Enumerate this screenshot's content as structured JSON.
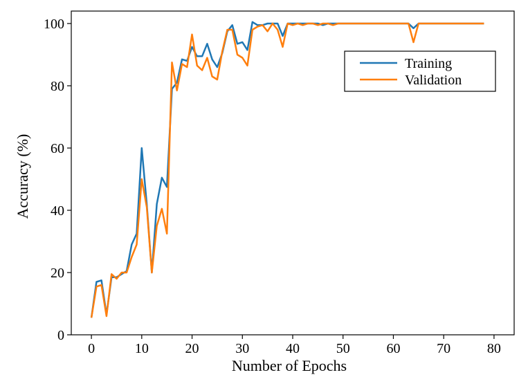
{
  "chart_data": {
    "type": "line",
    "title": "",
    "xlabel": "Number of Epochs",
    "ylabel": "Accuracy (%)",
    "xlim": [
      -4,
      84
    ],
    "ylim": [
      0,
      104
    ],
    "xticks": [
      0,
      10,
      20,
      30,
      40,
      50,
      60,
      70,
      80
    ],
    "yticks": [
      0,
      20,
      40,
      60,
      80,
      100
    ],
    "grid": false,
    "legend": "upper right",
    "x": [
      0,
      1,
      2,
      3,
      4,
      5,
      6,
      7,
      8,
      9,
      10,
      11,
      12,
      13,
      14,
      15,
      16,
      17,
      18,
      19,
      20,
      21,
      22,
      23,
      24,
      25,
      26,
      27,
      28,
      29,
      30,
      31,
      32,
      33,
      34,
      35,
      36,
      37,
      38,
      39,
      40,
      41,
      42,
      43,
      44,
      45,
      46,
      47,
      48,
      49,
      50,
      51,
      52,
      53,
      54,
      55,
      56,
      57,
      58,
      59,
      60,
      61,
      62,
      63,
      64,
      65,
      66,
      67,
      68,
      69,
      70,
      71,
      72,
      73,
      74,
      75,
      76,
      77,
      78
    ],
    "series": [
      {
        "name": "Training",
        "color": "#1f77b4",
        "values": [
          5.5,
          17,
          17.5,
          6.5,
          18.5,
          18.5,
          19.5,
          20.5,
          29,
          32.5,
          60,
          42,
          20,
          42,
          50.5,
          47.5,
          79,
          81,
          88.5,
          88,
          92.5,
          89.5,
          89.5,
          93.5,
          88.5,
          86,
          90.5,
          97.5,
          99.5,
          93.5,
          94,
          91.5,
          100.5,
          99.5,
          99.5,
          100,
          100,
          100,
          96,
          100,
          100,
          100,
          100,
          100,
          100,
          100,
          99.5,
          100,
          100,
          100,
          100,
          100,
          100,
          100,
          100,
          100,
          100,
          100,
          100,
          100,
          100,
          100,
          100,
          100,
          98.5,
          100,
          100,
          100,
          100,
          100,
          100,
          100,
          100,
          100,
          100,
          100,
          100,
          100,
          100
        ]
      },
      {
        "name": "Validation",
        "color": "#ff7f0e",
        "values": [
          5.5,
          15.5,
          16,
          6,
          19.5,
          18,
          20,
          20,
          25,
          29,
          50,
          41,
          20,
          35,
          40.5,
          32.5,
          87.5,
          78.5,
          87,
          86,
          96.5,
          86.5,
          85,
          89,
          83,
          82,
          91,
          98,
          98,
          90,
          89,
          86.5,
          98,
          99,
          99.5,
          97.5,
          100,
          98,
          92.5,
          100,
          99.5,
          100,
          99.5,
          100,
          100,
          99.5,
          100,
          100,
          99.5,
          100,
          100,
          100,
          100,
          100,
          100,
          100,
          100,
          100,
          100,
          100,
          100,
          100,
          100,
          100,
          94,
          100,
          100,
          100,
          100,
          100,
          100,
          100,
          100,
          100,
          100,
          100,
          100,
          100,
          100
        ]
      }
    ]
  }
}
